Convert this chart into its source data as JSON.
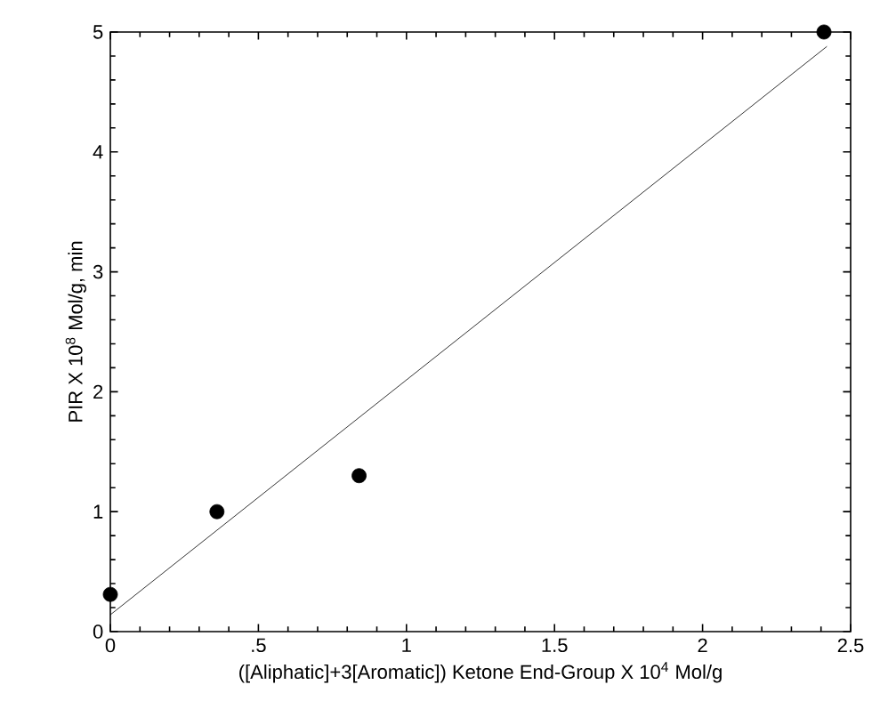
{
  "chart_data": {
    "type": "scatter",
    "xlabel": "([Aliphatic]+3[Aromatic]) Ketone End-Group X 10$^{4}$ Mol/g",
    "ylabel": "PIR X 10$^{8}$ Mol/g, min",
    "xlim": [
      0,
      2.5
    ],
    "ylim": [
      0,
      5
    ],
    "xticks": [
      0,
      {
        "value": 0.5,
        "label": ".5"
      },
      1,
      1.5,
      2,
      2.5
    ],
    "yticks": [
      0,
      1,
      2,
      3,
      4,
      5
    ],
    "series": [
      {
        "marker": "circle",
        "color": "#000000",
        "x": [
          0,
          0.36,
          0.84,
          2.41
        ],
        "values": [
          0.31,
          1.0,
          1.3,
          5.0
        ]
      },
      {
        "type": "line",
        "marker": "none",
        "color": "#000000",
        "x": [
          0,
          2.42
        ],
        "values": [
          0.14,
          4.88
        ]
      }
    ]
  }
}
